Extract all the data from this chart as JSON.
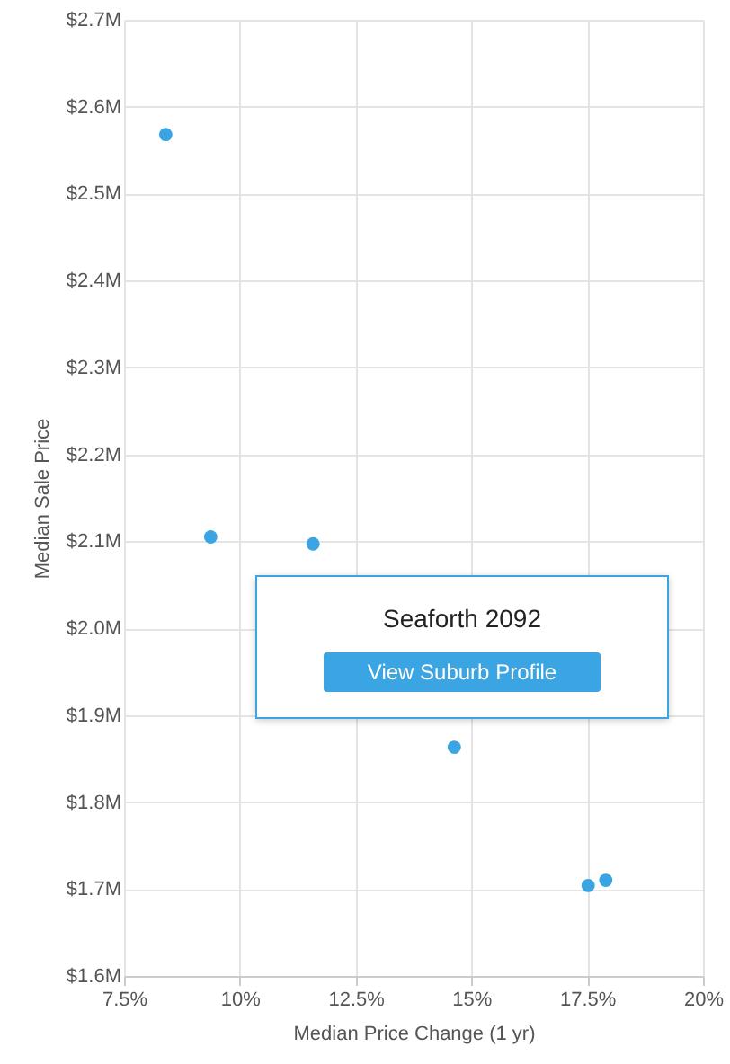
{
  "chart_data": {
    "type": "scatter",
    "xlabel": "Median Price Change (1 yr)",
    "ylabel": "Median Sale Price",
    "x": [
      8.4,
      9.37,
      11.58,
      14.63,
      17.52,
      17.9
    ],
    "series": [
      {
        "color": "#3ba4e2",
        "values": [
          2.568,
          2.105,
          2.097,
          1.863,
          1.704,
          1.71
        ]
      }
    ],
    "xlim": [
      7.5,
      20
    ],
    "ylim": [
      1.6,
      2.7
    ],
    "xticks": [
      {
        "value": 7.5,
        "label": "7.5%"
      },
      {
        "value": 10,
        "label": "10%"
      },
      {
        "value": 12.5,
        "label": "12.5%"
      },
      {
        "value": 15,
        "label": "15%"
      },
      {
        "value": 17.5,
        "label": "17.5%"
      },
      {
        "value": 20,
        "label": "20%"
      }
    ],
    "yticks": [
      {
        "value": 1.6,
        "label": "$1.6M"
      },
      {
        "value": 1.7,
        "label": "$1.7M"
      },
      {
        "value": 1.8,
        "label": "$1.8M"
      },
      {
        "value": 1.9,
        "label": "$1.9M"
      },
      {
        "value": 2.0,
        "label": "$2.0M"
      },
      {
        "value": 2.1,
        "label": "$2.1M"
      },
      {
        "value": 2.2,
        "label": "$2.2M"
      },
      {
        "value": 2.3,
        "label": "$2.3M"
      },
      {
        "value": 2.4,
        "label": "$2.4M"
      },
      {
        "value": 2.5,
        "label": "$2.5M"
      },
      {
        "value": 2.6,
        "label": "$2.6M"
      },
      {
        "value": 2.7,
        "label": "$2.7M"
      }
    ],
    "grid": true,
    "marker": "circle",
    "annotations": [
      "Seaforth 2092",
      "View Suburb Profile"
    ]
  }
}
